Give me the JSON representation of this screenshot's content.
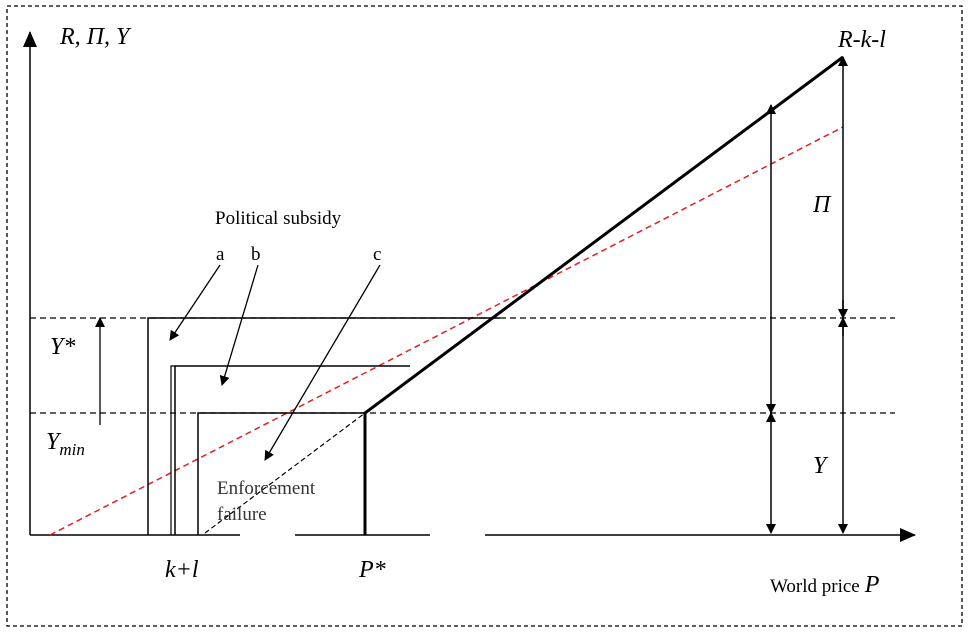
{
  "labels": {
    "axis_y": "R, Π, Y",
    "revenue_line": "R-k-l",
    "pi": "Π",
    "political_subsidy": "Political subsidy",
    "a": "a",
    "b": "b",
    "c": "c",
    "y_star": "Y*",
    "y_min": {
      "base": "Y",
      "sub": "min"
    },
    "y": "Y",
    "enforcement_failure": [
      "Enforcement",
      "failure"
    ],
    "k_l": "k+l",
    "p_star": "P*",
    "world_price": {
      "text": "World price",
      "var": "P"
    }
  }
}
